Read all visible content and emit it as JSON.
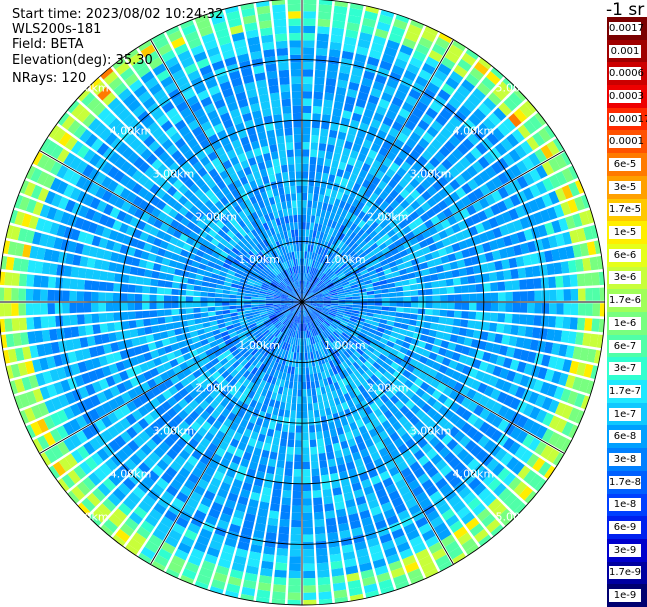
{
  "header": {
    "start_time": "Start time: 2023/08/02 10:24:32",
    "instrument": "WLS200s-181",
    "field": "Field: BETA",
    "elevation": "Elevation(deg): 35.30",
    "nrays": "NRays: 120"
  },
  "colorbar": {
    "unit": "-1 sr",
    "labels": [
      "0.0017",
      "0.001",
      "0.0006",
      "0.0003",
      "0.00017",
      "0.0001",
      "6e-5",
      "3e-5",
      "1.7e-5",
      "1e-5",
      "6e-6",
      "3e-6",
      "1.7e-6",
      "1e-6",
      "6e-7",
      "3e-7",
      "1.7e-7",
      "1e-7",
      "6e-8",
      "3e-8",
      "1.7e-8",
      "1e-8",
      "6e-9",
      "3e-9",
      "1.7e-9",
      "1e-9"
    ],
    "colors": [
      "#7a0000",
      "#a00000",
      "#cc0000",
      "#ee0000",
      "#ff2a00",
      "#ff5200",
      "#ff7a00",
      "#ffa000",
      "#ffc800",
      "#ffee00",
      "#e6ff1a",
      "#c8ff3a",
      "#a0ff5a",
      "#78ff80",
      "#50ffa8",
      "#30ffd0",
      "#20e8ff",
      "#10c8ff",
      "#00a0ff",
      "#0080ff",
      "#0060ff",
      "#0040ff",
      "#0020ee",
      "#0000cc",
      "#0000a0",
      "#000070"
    ]
  },
  "chart_data": {
    "type": "heatmap",
    "projection": "polar-ppi",
    "n_rays": 120,
    "range_km": [
      0,
      5
    ],
    "range_rings_km": [
      1,
      2,
      3,
      4,
      5
    ],
    "ring_labels": [
      "1.00km",
      "2.00km",
      "3.00km",
      "4.00km",
      "5.00km"
    ],
    "ring_label_quadrants": [
      "upper-left",
      "upper-right",
      "lower-left",
      "lower-right"
    ],
    "spoke_bearings_deg": [
      0,
      30,
      60,
      90,
      120,
      150,
      180,
      210,
      240,
      270,
      300,
      330
    ],
    "field": "BETA",
    "dominant_colors": [
      "#00a0ff",
      "#10c8ff",
      "#20e8ff",
      "#0060ff"
    ],
    "outer_ring_colors": [
      "#78ff80",
      "#c8ff3a",
      "#ffee00"
    ]
  }
}
